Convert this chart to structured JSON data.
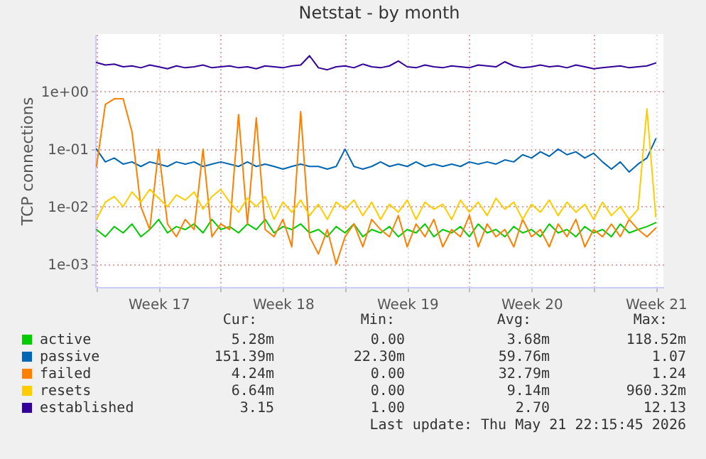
{
  "chart_data": {
    "type": "line",
    "title": "Netstat - by month",
    "ylabel": "TCP connections",
    "log": "y",
    "grid": true,
    "legend": "bottom",
    "line_style": "solid",
    "xlim": [
      "2026-04-19T22:15",
      "2026-05-21T22:15"
    ],
    "xticks": [
      {
        "value": "2026-04-20T00:00",
        "label": null
      },
      {
        "value": "2026-04-23T12:00",
        "label": "Week 17"
      },
      {
        "value": "2026-04-27T00:00",
        "label": null
      },
      {
        "value": "2026-04-30T12:00",
        "label": "Week 18"
      },
      {
        "value": "2026-05-04T00:00",
        "label": null
      },
      {
        "value": "2026-05-07T12:00",
        "label": "Week 19"
      },
      {
        "value": "2026-05-11T00:00",
        "label": null
      },
      {
        "value": "2026-05-14T12:00",
        "label": "Week 20"
      },
      {
        "value": "2026-05-18T00:00",
        "label": null
      },
      {
        "value": "2026-05-21T12:00",
        "label": "Week 21"
      }
    ],
    "ylim": [
      0.0004,
      10
    ],
    "yticks": [
      {
        "value": 0.001,
        "label": "1e-03"
      },
      {
        "value": 0.01,
        "label": "1e-02"
      },
      {
        "value": 0.1,
        "label": "1e-01"
      },
      {
        "value": 1,
        "label": "1e+00"
      }
    ],
    "x": [
      "2026-04-20T00:00",
      "2026-04-20T12:00",
      "2026-04-21T00:00",
      "2026-04-21T12:00",
      "2026-04-22T00:00",
      "2026-04-22T12:00",
      "2026-04-23T00:00",
      "2026-04-23T12:00",
      "2026-04-24T00:00",
      "2026-04-24T12:00",
      "2026-04-25T00:00",
      "2026-04-25T12:00",
      "2026-04-26T00:00",
      "2026-04-26T12:00",
      "2026-04-27T00:00",
      "2026-04-27T12:00",
      "2026-04-28T00:00",
      "2026-04-28T12:00",
      "2026-04-29T00:00",
      "2026-04-29T12:00",
      "2026-04-30T00:00",
      "2026-04-30T12:00",
      "2026-05-01T00:00",
      "2026-05-01T12:00",
      "2026-05-02T00:00",
      "2026-05-02T12:00",
      "2026-05-03T00:00",
      "2026-05-03T12:00",
      "2026-05-04T00:00",
      "2026-05-04T12:00",
      "2026-05-05T00:00",
      "2026-05-05T12:00",
      "2026-05-06T00:00",
      "2026-05-06T12:00",
      "2026-05-07T00:00",
      "2026-05-07T12:00",
      "2026-05-08T00:00",
      "2026-05-08T12:00",
      "2026-05-09T00:00",
      "2026-05-09T12:00",
      "2026-05-10T00:00",
      "2026-05-10T12:00",
      "2026-05-11T00:00",
      "2026-05-11T12:00",
      "2026-05-12T00:00",
      "2026-05-12T12:00",
      "2026-05-13T00:00",
      "2026-05-13T12:00",
      "2026-05-14T00:00",
      "2026-05-14T12:00",
      "2026-05-15T00:00",
      "2026-05-15T12:00",
      "2026-05-16T00:00",
      "2026-05-16T12:00",
      "2026-05-17T00:00",
      "2026-05-17T12:00",
      "2026-05-18T00:00",
      "2026-05-18T12:00",
      "2026-05-19T00:00",
      "2026-05-19T12:00",
      "2026-05-20T00:00",
      "2026-05-20T12:00",
      "2026-05-21T00:00",
      "2026-05-21T12:00"
    ],
    "series": [
      {
        "name": "active",
        "color": "#00cc00",
        "values": [
          0.004,
          0.003,
          0.0045,
          0.0035,
          0.005,
          0.003,
          0.004,
          0.006,
          0.0035,
          0.0045,
          0.004,
          0.005,
          0.0035,
          0.006,
          0.004,
          0.0045,
          0.0035,
          0.005,
          0.004,
          0.006,
          0.0035,
          0.0045,
          0.004,
          0.005,
          0.0035,
          0.004,
          0.003,
          0.0045,
          0.0035,
          0.005,
          0.003,
          0.004,
          0.0035,
          0.0045,
          0.003,
          0.004,
          0.0035,
          0.005,
          0.003,
          0.004,
          0.0035,
          0.0045,
          0.003,
          0.005,
          0.0035,
          0.004,
          0.003,
          0.0045,
          0.0035,
          0.004,
          0.003,
          0.005,
          0.0035,
          0.004,
          0.003,
          0.0045,
          0.0035,
          0.004,
          0.003,
          0.005,
          0.0035,
          0.004,
          0.0045,
          0.00528
        ]
      },
      {
        "name": "passive",
        "color": "#0066b3",
        "values": [
          0.1,
          0.06,
          0.07,
          0.055,
          0.06,
          0.05,
          0.06,
          0.055,
          0.05,
          0.06,
          0.055,
          0.06,
          0.05,
          0.055,
          0.06,
          0.055,
          0.05,
          0.06,
          0.05,
          0.055,
          0.05,
          0.045,
          0.05,
          0.055,
          0.05,
          0.05,
          0.045,
          0.05,
          0.1,
          0.05,
          0.045,
          0.05,
          0.06,
          0.05,
          0.055,
          0.05,
          0.06,
          0.05,
          0.055,
          0.05,
          0.055,
          0.05,
          0.06,
          0.055,
          0.06,
          0.055,
          0.065,
          0.06,
          0.08,
          0.07,
          0.09,
          0.075,
          0.1,
          0.08,
          0.09,
          0.07,
          0.085,
          0.06,
          0.045,
          0.06,
          0.04,
          0.055,
          0.07,
          0.151
        ]
      },
      {
        "name": "failed",
        "color": "#ff8000",
        "values": [
          0.05,
          0.6,
          0.75,
          0.75,
          0.2,
          0.01,
          0.004,
          0.1,
          0.005,
          0.003,
          0.006,
          0.004,
          0.1,
          0.003,
          0.005,
          0.004,
          0.4,
          0.005,
          0.35,
          0.004,
          0.003,
          0.006,
          0.002,
          0.45,
          0.003,
          0.0015,
          0.004,
          0.001,
          0.003,
          0.005,
          0.002,
          0.006,
          0.004,
          0.003,
          0.007,
          0.002,
          0.005,
          0.003,
          0.006,
          0.002,
          0.004,
          0.003,
          0.007,
          0.002,
          0.005,
          0.003,
          0.004,
          0.002,
          0.006,
          0.003,
          0.004,
          0.002,
          0.005,
          0.003,
          0.006,
          0.002,
          0.004,
          0.003,
          0.005,
          0.003,
          0.006,
          0.004,
          0.003,
          0.00424
        ]
      },
      {
        "name": "resets",
        "color": "#ffcc00",
        "values": [
          0.006,
          0.012,
          0.015,
          0.01,
          0.018,
          0.012,
          0.02,
          0.014,
          0.01,
          0.016,
          0.013,
          0.018,
          0.009,
          0.015,
          0.02,
          0.012,
          0.008,
          0.014,
          0.01,
          0.015,
          0.006,
          0.012,
          0.008,
          0.013,
          0.007,
          0.011,
          0.006,
          0.012,
          0.009,
          0.013,
          0.007,
          0.012,
          0.006,
          0.011,
          0.008,
          0.013,
          0.006,
          0.012,
          0.009,
          0.011,
          0.006,
          0.013,
          0.008,
          0.012,
          0.007,
          0.014,
          0.009,
          0.012,
          0.006,
          0.011,
          0.008,
          0.013,
          0.007,
          0.012,
          0.008,
          0.011,
          0.006,
          0.012,
          0.007,
          0.01,
          0.006,
          0.009,
          0.5,
          0.00664
        ]
      },
      {
        "name": "established",
        "color": "#330099",
        "values": [
          3.2,
          2.9,
          3.0,
          2.7,
          2.8,
          2.6,
          2.9,
          2.7,
          2.5,
          2.8,
          2.6,
          2.7,
          2.9,
          2.6,
          2.7,
          2.8,
          2.6,
          2.7,
          2.5,
          2.8,
          2.7,
          2.6,
          2.8,
          2.9,
          4.2,
          2.6,
          2.4,
          2.7,
          2.8,
          2.6,
          3.0,
          2.7,
          2.6,
          2.8,
          3.4,
          2.7,
          2.6,
          2.9,
          2.7,
          2.6,
          2.8,
          2.7,
          2.6,
          2.9,
          2.8,
          2.7,
          3.3,
          2.8,
          2.6,
          2.7,
          2.9,
          2.7,
          2.8,
          2.6,
          2.9,
          2.7,
          2.5,
          2.6,
          2.7,
          2.8,
          2.6,
          2.7,
          2.8,
          3.15
        ]
      }
    ],
    "annotations": [
      "Cur:",
      "Min:",
      "Avg:",
      "Max:",
      "5.28m",
      "0.00",
      "3.68m",
      "118.52m",
      "151.39m",
      "22.30m",
      "59.76m",
      "1.07",
      "4.24m",
      "0.00",
      "32.79m",
      "1.24",
      "6.64m",
      "0.00",
      "9.14m",
      "960.32m",
      "3.15",
      "1.00",
      "2.70",
      "12.13",
      "Last update: Thu May 21 22:15:45 2026"
    ]
  }
}
